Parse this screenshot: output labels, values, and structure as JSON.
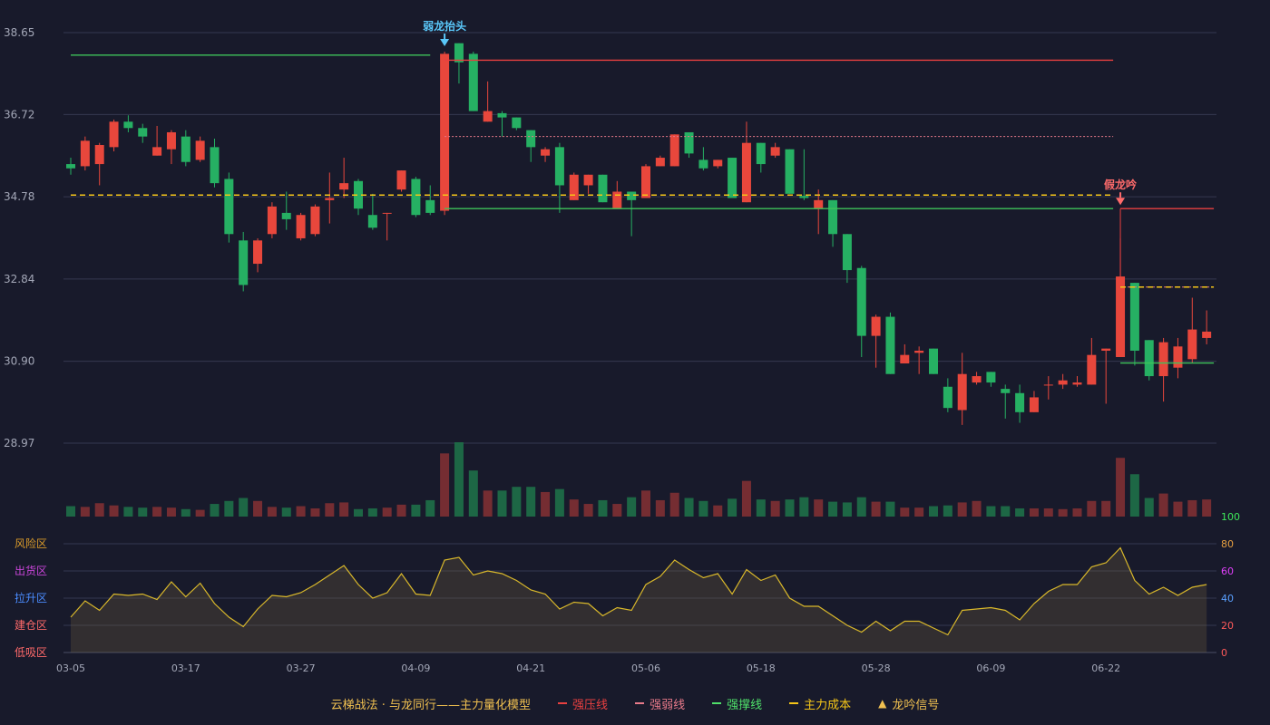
{
  "colors": {
    "background": "#181a2b",
    "up": "#e8473c",
    "down": "#26b063",
    "grid": "#353850",
    "axis_text": "#a3a7b7",
    "resistance": "#e84040",
    "weak": "#e87a8a",
    "support": "#3ec35a",
    "cost": "#f5c518",
    "signal_blue": "#5ac8fa",
    "signal_red": "#ff6b6b",
    "oscillator_line": "#d9b82b"
  },
  "legend": {
    "title": "云梯战法 · 与龙同行——主力量化模型",
    "items": [
      {
        "label": "强压线",
        "color": "#e84040",
        "style": "solid",
        "icon": "line-icon"
      },
      {
        "label": "强弱线",
        "color": "#e87a8a",
        "style": "dashed",
        "icon": "line-icon"
      },
      {
        "label": "强撑线",
        "color": "#4fe06a",
        "style": "solid",
        "icon": "line-icon"
      },
      {
        "label": "主力成本",
        "color": "#f5c518",
        "style": "dashed",
        "icon": "line-icon"
      },
      {
        "label": "龙吟信号",
        "color": "#f0c050",
        "style": "triangle",
        "icon": "triangle-icon"
      }
    ]
  },
  "chart_data": {
    "type": "candlestick",
    "price_axis": {
      "ticks": [
        "38.65",
        "36.72",
        "34.78",
        "32.84",
        "30.90",
        "28.97"
      ],
      "ylim": [
        28.97,
        38.65
      ]
    },
    "x_tick_labels": [
      "03-05",
      "03-17",
      "03-27",
      "04-09",
      "04-21",
      "05-06",
      "05-18",
      "05-28",
      "06-09",
      "06-22"
    ],
    "x_tick_index": [
      0,
      8,
      16,
      24,
      32,
      40,
      48,
      56,
      64,
      72
    ],
    "candles": [
      [
        35.55,
        35.45,
        35.7,
        35.3
      ],
      [
        35.5,
        36.1,
        36.2,
        35.4
      ],
      [
        35.55,
        36.0,
        36.05,
        35.05
      ],
      [
        35.95,
        36.55,
        36.6,
        35.85
      ],
      [
        36.55,
        36.4,
        36.7,
        36.3
      ],
      [
        36.4,
        36.2,
        36.5,
        36.05
      ],
      [
        35.75,
        35.95,
        36.45,
        35.75
      ],
      [
        35.9,
        36.3,
        36.35,
        35.55
      ],
      [
        36.2,
        35.6,
        36.35,
        35.5
      ],
      [
        35.65,
        36.1,
        36.2,
        35.6
      ],
      [
        35.95,
        35.1,
        36.15,
        35.0
      ],
      [
        35.2,
        33.9,
        35.35,
        33.7
      ],
      [
        33.75,
        32.7,
        33.95,
        32.55
      ],
      [
        33.2,
        33.75,
        33.8,
        33.0
      ],
      [
        33.9,
        34.55,
        34.65,
        33.8
      ],
      [
        34.4,
        34.25,
        34.9,
        34.0
      ],
      [
        33.8,
        34.35,
        34.4,
        33.75
      ],
      [
        33.9,
        34.55,
        34.6,
        33.85
      ],
      [
        34.7,
        34.75,
        35.35,
        34.15
      ],
      [
        34.95,
        35.1,
        35.7,
        34.75
      ],
      [
        35.15,
        34.5,
        35.2,
        34.35
      ],
      [
        34.35,
        34.05,
        34.85,
        34.0
      ],
      [
        34.4,
        34.4,
        34.4,
        33.75
      ],
      [
        34.95,
        35.4,
        35.4,
        34.9
      ],
      [
        35.2,
        34.35,
        35.25,
        34.3
      ],
      [
        34.7,
        34.4,
        35.05,
        34.35
      ],
      [
        34.45,
        38.15,
        38.2,
        34.35
      ],
      [
        38.4,
        37.95,
        38.4,
        37.45
      ],
      [
        38.15,
        36.8,
        38.2,
        36.8
      ],
      [
        36.55,
        36.8,
        37.5,
        36.55
      ],
      [
        36.75,
        36.65,
        36.8,
        36.2
      ],
      [
        36.65,
        36.4,
        36.65,
        36.35
      ],
      [
        36.35,
        35.95,
        36.35,
        35.6
      ],
      [
        35.75,
        35.9,
        35.95,
        35.6
      ],
      [
        35.95,
        35.05,
        36.05,
        34.4
      ],
      [
        34.7,
        35.3,
        35.35,
        34.7
      ],
      [
        35.05,
        35.3,
        35.3,
        34.85
      ],
      [
        35.3,
        34.65,
        35.3,
        34.65
      ],
      [
        34.5,
        34.9,
        35.15,
        34.5
      ],
      [
        34.9,
        34.7,
        34.9,
        33.85
      ],
      [
        34.75,
        35.5,
        35.55,
        34.75
      ],
      [
        35.5,
        35.7,
        35.75,
        35.5
      ],
      [
        35.5,
        36.25,
        36.25,
        35.5
      ],
      [
        36.3,
        35.8,
        36.3,
        35.7
      ],
      [
        35.65,
        35.45,
        35.95,
        35.4
      ],
      [
        35.5,
        35.65,
        35.65,
        35.45
      ],
      [
        35.7,
        34.75,
        35.7,
        34.75
      ],
      [
        34.65,
        36.05,
        36.55,
        34.65
      ],
      [
        36.05,
        35.55,
        36.05,
        35.35
      ],
      [
        35.75,
        35.95,
        36.05,
        35.7
      ],
      [
        35.9,
        34.85,
        35.9,
        34.85
      ],
      [
        34.8,
        34.75,
        35.9,
        34.7
      ],
      [
        34.5,
        34.7,
        34.95,
        33.9
      ],
      [
        34.7,
        33.9,
        34.7,
        33.6
      ],
      [
        33.9,
        33.05,
        33.9,
        32.75
      ],
      [
        33.1,
        31.5,
        33.15,
        31.0
      ],
      [
        31.5,
        31.95,
        32.0,
        30.75
      ],
      [
        31.95,
        30.6,
        32.05,
        30.6
      ],
      [
        30.85,
        31.05,
        31.3,
        30.85
      ],
      [
        31.1,
        31.15,
        31.25,
        30.6
      ],
      [
        31.2,
        30.6,
        31.2,
        30.6
      ],
      [
        30.3,
        29.8,
        30.5,
        29.7
      ],
      [
        29.75,
        30.6,
        31.1,
        29.4
      ],
      [
        30.4,
        30.55,
        30.65,
        30.35
      ],
      [
        30.65,
        30.4,
        30.65,
        30.3
      ],
      [
        30.25,
        30.15,
        30.35,
        29.55
      ],
      [
        30.15,
        29.7,
        30.35,
        29.45
      ],
      [
        29.7,
        30.05,
        30.2,
        29.7
      ],
      [
        30.35,
        30.35,
        30.55,
        30.0
      ],
      [
        30.35,
        30.45,
        30.6,
        30.25
      ],
      [
        30.35,
        30.4,
        30.55,
        30.3
      ],
      [
        30.35,
        31.05,
        31.45,
        30.35
      ],
      [
        31.15,
        31.2,
        31.2,
        29.9
      ],
      [
        31.0,
        32.9,
        33.8,
        31.0
      ],
      [
        32.75,
        31.15,
        32.75,
        30.8
      ],
      [
        31.4,
        30.55,
        31.4,
        30.45
      ],
      [
        30.55,
        31.35,
        31.45,
        29.95
      ],
      [
        30.75,
        31.25,
        31.45,
        30.5
      ],
      [
        30.95,
        31.65,
        32.4,
        30.85
      ],
      [
        31.45,
        31.6,
        32.1,
        31.3
      ]
    ],
    "volume_ratio": [
      0.14,
      0.13,
      0.18,
      0.15,
      0.13,
      0.12,
      0.13,
      0.12,
      0.1,
      0.09,
      0.17,
      0.21,
      0.25,
      0.21,
      0.13,
      0.12,
      0.14,
      0.11,
      0.18,
      0.19,
      0.1,
      0.11,
      0.12,
      0.16,
      0.16,
      0.22,
      0.85,
      1.0,
      0.62,
      0.35,
      0.35,
      0.4,
      0.4,
      0.33,
      0.37,
      0.23,
      0.17,
      0.22,
      0.17,
      0.26,
      0.35,
      0.22,
      0.32,
      0.25,
      0.21,
      0.15,
      0.24,
      0.48,
      0.23,
      0.21,
      0.23,
      0.26,
      0.23,
      0.2,
      0.19,
      0.26,
      0.2,
      0.2,
      0.12,
      0.12,
      0.14,
      0.15,
      0.19,
      0.21,
      0.14,
      0.14,
      0.11,
      0.11,
      0.11,
      0.1,
      0.11,
      0.21,
      0.21,
      0.79,
      0.57,
      0.25,
      0.31,
      0.2,
      0.22,
      0.23
    ],
    "oscillator": {
      "ticks": [
        0,
        20,
        40,
        60,
        80,
        100
      ],
      "ylim": [
        0,
        100
      ],
      "zones": [
        "低吸区",
        "建仓区",
        "拉升区",
        "出货区",
        "风险区"
      ],
      "zone_colors": [
        "#ff6a6a",
        "#ff6a6a",
        "#4a8cff",
        "#c845d8",
        "#d99a2a"
      ],
      "tick_colors": [
        "#ff5a5a",
        "#ff5a5a",
        "#5aa0ff",
        "#e040fb",
        "#e8a040",
        "#3ee85a"
      ],
      "values": [
        26,
        38,
        31,
        43,
        42,
        43,
        39,
        52,
        41,
        51,
        36,
        26,
        19,
        32,
        42,
        41,
        44,
        50,
        57,
        64,
        50,
        40,
        44,
        58,
        43,
        42,
        68,
        70,
        57,
        60,
        58,
        53,
        46,
        43,
        32,
        37,
        36,
        27,
        33,
        31,
        50,
        56,
        68,
        61,
        55,
        58,
        43,
        61,
        53,
        57,
        40,
        34,
        34,
        27,
        20,
        15,
        23,
        16,
        23,
        23,
        18,
        13,
        31,
        32,
        33,
        31,
        24,
        36,
        45,
        50,
        50,
        63,
        66,
        77,
        53,
        43,
        48,
        42,
        48,
        50
      ]
    },
    "lines": {
      "strong_pressure": [
        {
          "from": 26,
          "to": 72.5,
          "value": 38.0
        },
        {
          "from": 73,
          "to": 79.5,
          "value": 34.5
        }
      ],
      "weak_strong": [
        {
          "from": 26,
          "to": 72.5,
          "value": 36.2,
          "style": "dotted"
        },
        {
          "from": 73,
          "to": 79.5,
          "value": 32.65,
          "style": "dotted"
        }
      ],
      "strong_support": [
        {
          "from": 0,
          "to": 25,
          "value": 38.12
        },
        {
          "from": 26,
          "to": 72.5,
          "value": 34.5
        },
        {
          "from": 73,
          "to": 79.5,
          "value": 30.86
        }
      ],
      "main_cost": [
        {
          "from": 0,
          "to": 72.5,
          "value": 34.82
        },
        {
          "from": 73,
          "to": 79.5,
          "value": 32.65
        }
      ]
    },
    "signals": [
      {
        "index": 26,
        "label": "弱龙抬头",
        "kind": "weak"
      },
      {
        "index": 73,
        "label": "假龙吟",
        "kind": "fake"
      }
    ]
  }
}
